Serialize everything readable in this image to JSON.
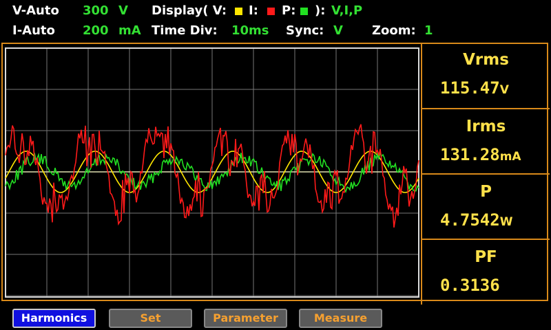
{
  "header": {
    "row1": {
      "v_range": "V-Auto",
      "v_value": "300",
      "v_unit": "V",
      "display_open": "Display( V:",
      "display_i": "I:",
      "display_p": "P:",
      "display_close": "):",
      "display_value": "V,I,P"
    },
    "row2": {
      "i_range": "I-Auto",
      "i_value": "200",
      "i_unit": "mA",
      "time_div_label": "Time Div:",
      "time_div_value": "10ms",
      "sync_label": "Sync:",
      "sync_value": "V",
      "zoom_label": "Zoom:",
      "zoom_value": "1"
    }
  },
  "measurements": [
    {
      "label": "Vrms",
      "value": "115.47",
      "unit": "V"
    },
    {
      "label": "Irms",
      "value": "131.28",
      "unit": "mA"
    },
    {
      "label": "P",
      "value": "4.7542",
      "unit": "W"
    },
    {
      "label": "PF",
      "value": "0.3136"
    }
  ],
  "buttons": [
    "Harmonics",
    "Set",
    "Parameter",
    "Measure"
  ]
}
